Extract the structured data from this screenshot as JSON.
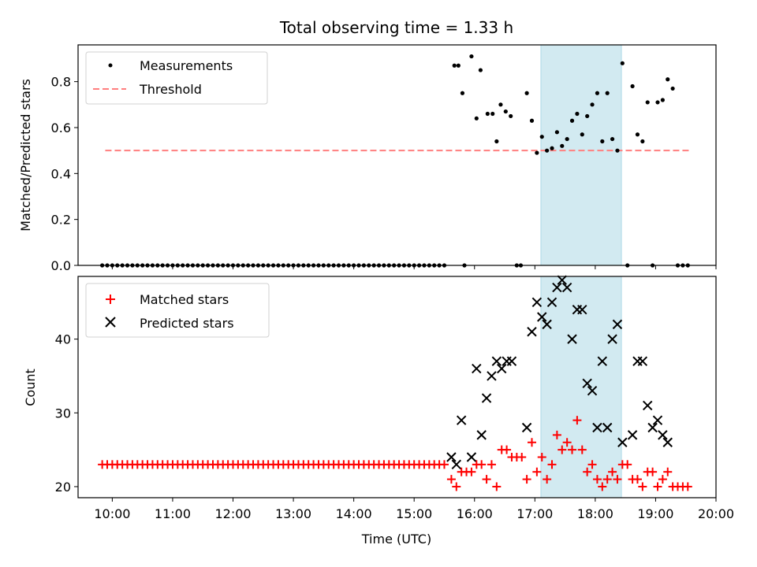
{
  "chart_data": {
    "title": "Total observing time = 1.33 h",
    "x_tick_labels": [
      "10:00",
      "11:00",
      "12:00",
      "13:00",
      "14:00",
      "15:00",
      "16:00",
      "17:00",
      "18:00",
      "19:00",
      "20:00"
    ],
    "xlabel": "Time (UTC)",
    "xlim": [
      "09:26",
      "20:00"
    ],
    "highlight_span": [
      "17:06",
      "18:26"
    ],
    "colors": {
      "span": "#add8e6",
      "threshold": "#ff7f7f",
      "measurements": "#000000",
      "matched": "#ff0000",
      "predicted": "#000000"
    },
    "top": {
      "type": "scatter",
      "ylabel": "Matched/Predicted stars",
      "ylim": [
        0,
        0.96
      ],
      "y_ticks": [
        "0.0",
        "0.2",
        "0.4",
        "0.6",
        "0.8"
      ],
      "y_tick_values": [
        0,
        0.2,
        0.4,
        0.6,
        0.8
      ],
      "legend": {
        "position": "top-left",
        "entries": [
          "Measurements",
          "Threshold"
        ]
      },
      "threshold": {
        "value": 0.5,
        "x_range": [
          "09:53",
          "19:33"
        ]
      },
      "zero_run": {
        "start": "09:50",
        "end": "15:33",
        "step_min": 5,
        "value": 0
      },
      "points": [
        [
          "15:40",
          0.87
        ],
        [
          "15:44",
          0.87
        ],
        [
          "15:48",
          0.75
        ],
        [
          "15:50",
          0.0
        ],
        [
          "15:57",
          0.91
        ],
        [
          "16:02",
          0.64
        ],
        [
          "16:06",
          0.85
        ],
        [
          "16:13",
          0.66
        ],
        [
          "16:18",
          0.66
        ],
        [
          "16:22",
          0.54
        ],
        [
          "16:26",
          0.7
        ],
        [
          "16:31",
          0.67
        ],
        [
          "16:36",
          0.65
        ],
        [
          "16:42",
          0.0
        ],
        [
          "16:46",
          0.0
        ],
        [
          "16:52",
          0.75
        ],
        [
          "16:57",
          0.63
        ],
        [
          "17:02",
          0.49
        ],
        [
          "17:07",
          0.56
        ],
        [
          "17:12",
          0.5
        ],
        [
          "17:17",
          0.51
        ],
        [
          "17:22",
          0.58
        ],
        [
          "17:27",
          0.52
        ],
        [
          "17:32",
          0.55
        ],
        [
          "17:37",
          0.63
        ],
        [
          "17:42",
          0.66
        ],
        [
          "17:47",
          0.57
        ],
        [
          "17:52",
          0.65
        ],
        [
          "17:57",
          0.7
        ],
        [
          "18:02",
          0.75
        ],
        [
          "18:07",
          0.54
        ],
        [
          "18:12",
          0.75
        ],
        [
          "18:17",
          0.55
        ],
        [
          "18:22",
          0.5
        ],
        [
          "18:27",
          0.88
        ],
        [
          "18:32",
          0.0
        ],
        [
          "18:37",
          0.78
        ],
        [
          "18:42",
          0.57
        ],
        [
          "18:47",
          0.54
        ],
        [
          "18:52",
          0.71
        ],
        [
          "18:57",
          0.0
        ],
        [
          "19:02",
          0.71
        ],
        [
          "19:07",
          0.72
        ],
        [
          "19:12",
          0.81
        ],
        [
          "19:17",
          0.77
        ],
        [
          "19:22",
          0.0
        ],
        [
          "19:27",
          0.0
        ],
        [
          "19:32",
          0.0
        ]
      ]
    },
    "bottom": {
      "type": "scatter",
      "ylabel": "Count",
      "ylim": [
        18.5,
        48.5
      ],
      "y_ticks": [
        "20",
        "30",
        "40"
      ],
      "y_tick_values": [
        20,
        30,
        40
      ],
      "legend": {
        "position": "top-left",
        "entries": [
          "Matched stars",
          "Predicted stars"
        ]
      },
      "matched_run": {
        "start": "09:50",
        "end": "15:33",
        "step_min": 5,
        "value": 23
      },
      "matched": [
        [
          "15:37",
          21
        ],
        [
          "15:42",
          20
        ],
        [
          "15:47",
          22
        ],
        [
          "15:52",
          22
        ],
        [
          "15:57",
          22
        ],
        [
          "16:02",
          23
        ],
        [
          "16:07",
          23
        ],
        [
          "16:12",
          21
        ],
        [
          "16:17",
          23
        ],
        [
          "16:22",
          20
        ],
        [
          "16:27",
          25
        ],
        [
          "16:32",
          25
        ],
        [
          "16:37",
          24
        ],
        [
          "16:42",
          24
        ],
        [
          "16:47",
          24
        ],
        [
          "16:52",
          21
        ],
        [
          "16:57",
          26
        ],
        [
          "17:02",
          22
        ],
        [
          "17:07",
          24
        ],
        [
          "17:12",
          21
        ],
        [
          "17:17",
          23
        ],
        [
          "17:22",
          27
        ],
        [
          "17:27",
          25
        ],
        [
          "17:32",
          26
        ],
        [
          "17:37",
          25
        ],
        [
          "17:42",
          29
        ],
        [
          "17:47",
          25
        ],
        [
          "17:52",
          22
        ],
        [
          "17:57",
          23
        ],
        [
          "18:02",
          21
        ],
        [
          "18:07",
          20
        ],
        [
          "18:12",
          21
        ],
        [
          "18:17",
          22
        ],
        [
          "18:22",
          21
        ],
        [
          "18:27",
          23
        ],
        [
          "18:32",
          23
        ],
        [
          "18:37",
          21
        ],
        [
          "18:42",
          21
        ],
        [
          "18:47",
          20
        ],
        [
          "18:52",
          22
        ],
        [
          "18:57",
          22
        ],
        [
          "19:02",
          20
        ],
        [
          "19:07",
          21
        ],
        [
          "19:12",
          22
        ],
        [
          "19:17",
          20
        ],
        [
          "19:22",
          20
        ],
        [
          "19:27",
          20
        ],
        [
          "19:32",
          20
        ]
      ],
      "predicted": [
        [
          "15:37",
          24
        ],
        [
          "15:42",
          23
        ],
        [
          "15:47",
          29
        ],
        [
          "15:57",
          24
        ],
        [
          "16:02",
          36
        ],
        [
          "16:07",
          27
        ],
        [
          "16:12",
          32
        ],
        [
          "16:17",
          35
        ],
        [
          "16:22",
          37
        ],
        [
          "16:27",
          36
        ],
        [
          "16:32",
          37
        ],
        [
          "16:37",
          37
        ],
        [
          "16:52",
          28
        ],
        [
          "16:57",
          41
        ],
        [
          "17:02",
          45
        ],
        [
          "17:07",
          43
        ],
        [
          "17:12",
          42
        ],
        [
          "17:17",
          45
        ],
        [
          "17:22",
          47
        ],
        [
          "17:27",
          48
        ],
        [
          "17:32",
          47
        ],
        [
          "17:37",
          40
        ],
        [
          "17:42",
          44
        ],
        [
          "17:47",
          44
        ],
        [
          "17:52",
          34
        ],
        [
          "17:57",
          33
        ],
        [
          "18:02",
          28
        ],
        [
          "18:07",
          37
        ],
        [
          "18:12",
          28
        ],
        [
          "18:17",
          40
        ],
        [
          "18:22",
          42
        ],
        [
          "18:27",
          26
        ],
        [
          "18:37",
          27
        ],
        [
          "18:42",
          37
        ],
        [
          "18:47",
          37
        ],
        [
          "18:52",
          31
        ],
        [
          "18:57",
          28
        ],
        [
          "19:02",
          29
        ],
        [
          "19:07",
          27
        ],
        [
          "19:12",
          26
        ]
      ]
    }
  }
}
